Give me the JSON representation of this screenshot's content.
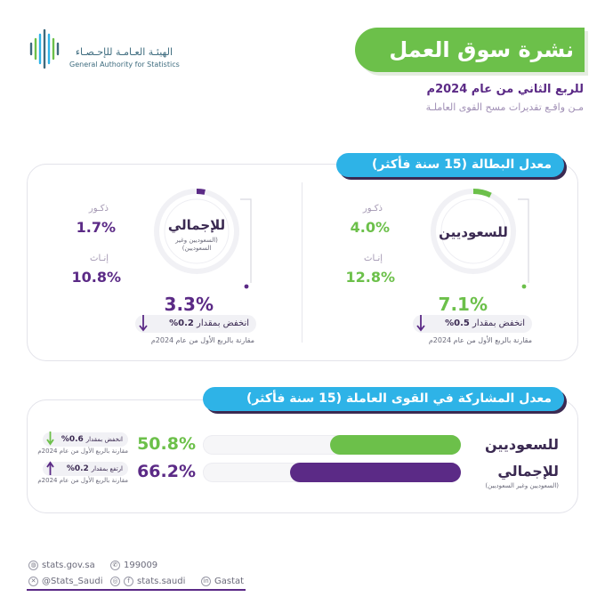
{
  "header": {
    "org_name_ar": "الهيئـة العـامـة للإحـصـاء",
    "org_name_en": "General Authority for Statistics",
    "title": "نشرة سوق العمل",
    "period": "للربع الثاني من عام 2024م",
    "source": "مـن واقـع تقديرات مسح القوى العاملـة"
  },
  "unemployment": {
    "section_title": "معدل البطالة (15 سنة فأكثر)",
    "saudi": {
      "ring_label": "للسعوديين",
      "rate": "7.1%",
      "rate_value": 7.1,
      "male_label": "ذكـور",
      "male_value": "4.0%",
      "female_label": "إنـاث",
      "female_value": "12.8%",
      "change_text": "انخفض بمقدار",
      "change_value": "0.5%",
      "comparison": "مقارنة بالربع الأول من عام 2024م"
    },
    "total": {
      "ring_label": "للإجمالي",
      "ring_sub": "(السعوديين وغير السعوديين)",
      "rate": "3.3%",
      "rate_value": 3.3,
      "male_label": "ذكـور",
      "male_value": "1.7%",
      "female_label": "إنـاث",
      "female_value": "10.8%",
      "change_text": "انخفض بمقدار",
      "change_value": "0.2%",
      "comparison": "مقارنة بالربع الأول من عام 2024م"
    }
  },
  "participation": {
    "section_title": "معدل المشاركة في القوى العاملة (15 سنة فأكثر)",
    "rows": [
      {
        "label": "للسعوديين",
        "sub": "",
        "value": "50.8%",
        "fraction": 0.508,
        "change_text": "انخفض بمقدار",
        "change_value": "0.6%",
        "comparison": "مقارنة بالربع الأول من عام 2024م"
      },
      {
        "label": "للإجمالي",
        "sub": "(السعوديين وغير السعوديين)",
        "value": "66.2%",
        "fraction": 0.662,
        "change_text": "ارتفع بمقدار",
        "change_value": "0.2%",
        "comparison": "مقارنة بالربع الأول من عام 2024م"
      }
    ]
  },
  "footer": {
    "website": "stats.gov.sa",
    "phone": "199009",
    "twitter": "@Stats_Saudi",
    "social": "stats.saudi",
    "linkedin": "Gastat"
  },
  "colors": {
    "green": "#6cc04a",
    "purple": "#5b2a86",
    "blue": "#2eb3e7",
    "dark": "#3b2a52"
  },
  "icons": [
    "logo-icon",
    "arrow-down-icon",
    "arrow-up-icon",
    "globe-icon",
    "phone-icon",
    "x-icon",
    "instagram-icon",
    "facebook-icon",
    "linkedin-icon"
  ]
}
